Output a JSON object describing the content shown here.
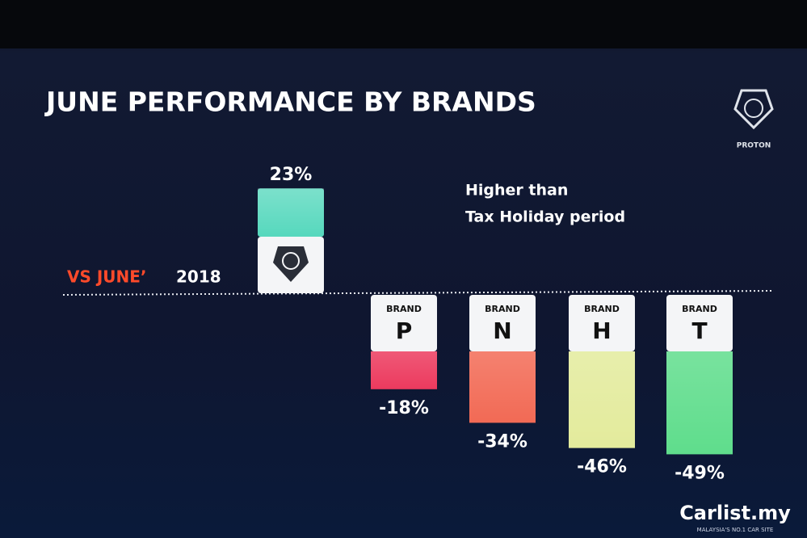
{
  "chart_data": {
    "type": "bar",
    "title": "JUNE PERFORMANCE BY BRANDS",
    "logo_text": "PROTON",
    "annotation": [
      "Higher than",
      "Tax Holiday period"
    ],
    "comparison_label": "VS JUNE’",
    "comparison_year": "2018",
    "brand_label": "BRAND",
    "categories": [
      null,
      "P",
      "N",
      "H",
      "T"
    ],
    "values": [
      23,
      -18,
      -34,
      -46,
      -49
    ],
    "value_labels": [
      "23%",
      "-18%",
      "-34%",
      "-46%",
      "-49%"
    ],
    "colors": [
      "#56d8bd",
      "#ec3a5e",
      "#f26a55",
      "#e3eb9c",
      "#5fdd8c"
    ],
    "watermark": "Carlist.my",
    "watermark_tagline": "MALAYSIA'S NO.1 CAR SITE"
  }
}
